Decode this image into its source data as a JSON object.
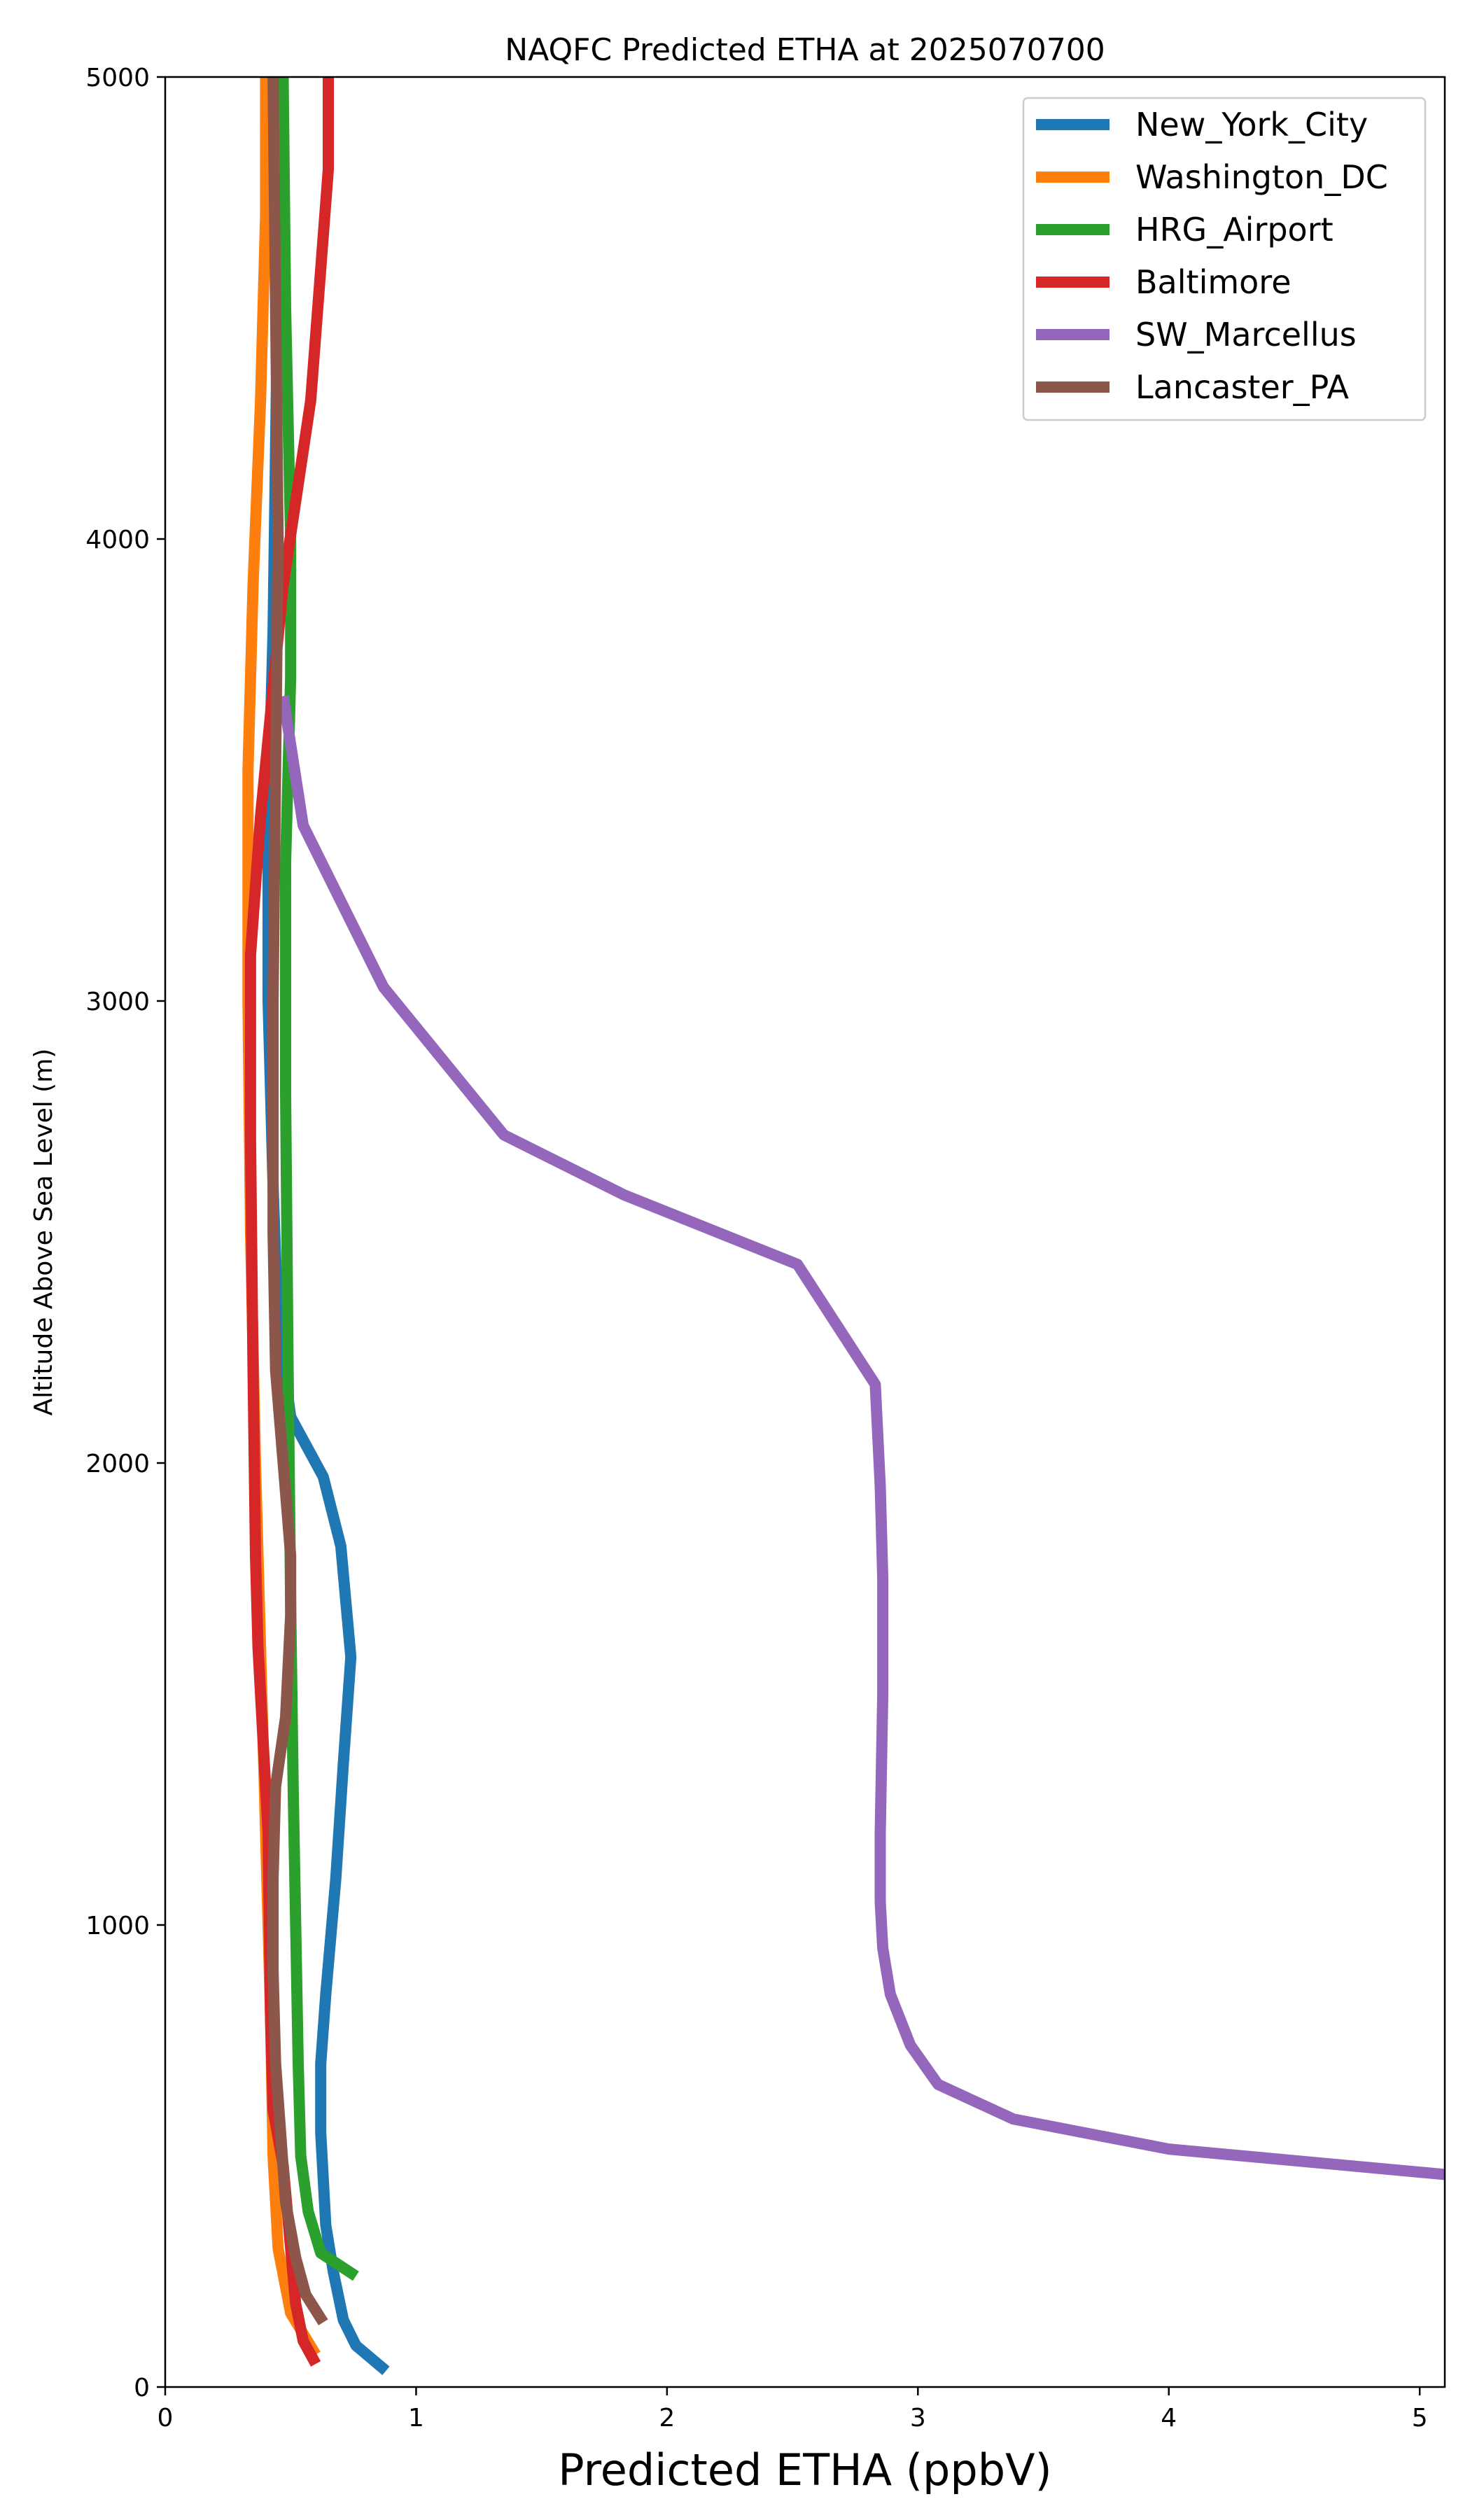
{
  "chart_data": {
    "type": "line",
    "title": "NAQFC Predicted ETHA at 2025070700",
    "xlabel": "Predicted ETHA (ppbV)",
    "ylabel": "Altitude Above Sea Level (m)",
    "xlim": [
      0,
      5.1
    ],
    "ylim": [
      0,
      5000
    ],
    "xticks": [
      0,
      1,
      2,
      3,
      4,
      5
    ],
    "yticks": [
      0,
      1000,
      2000,
      3000,
      4000,
      5000
    ],
    "legend": "top-right",
    "grid": false,
    "series": [
      {
        "name": "New_York_City",
        "color": "#1f77b4",
        "points": [
          [
            0.88,
            35
          ],
          [
            0.76,
            90
          ],
          [
            0.71,
            145
          ],
          [
            0.67,
            250
          ],
          [
            0.64,
            350
          ],
          [
            0.63,
            450
          ],
          [
            0.62,
            550
          ],
          [
            0.62,
            700
          ],
          [
            0.64,
            850
          ],
          [
            0.68,
            1100
          ],
          [
            0.71,
            1350
          ],
          [
            0.74,
            1580
          ],
          [
            0.7,
            1820
          ],
          [
            0.63,
            1970
          ],
          [
            0.5,
            2100
          ],
          [
            0.45,
            2300
          ],
          [
            0.43,
            2600
          ],
          [
            0.41,
            3000
          ],
          [
            0.41,
            3400
          ],
          [
            0.43,
            3800
          ],
          [
            0.44,
            4200
          ],
          [
            0.45,
            4600
          ],
          [
            0.46,
            5000
          ]
        ]
      },
      {
        "name": "Washington_DC",
        "color": "#ff7f0e",
        "points": [
          [
            0.6,
            70
          ],
          [
            0.5,
            160
          ],
          [
            0.45,
            300
          ],
          [
            0.43,
            500
          ],
          [
            0.42,
            800
          ],
          [
            0.4,
            1200
          ],
          [
            0.38,
            1600
          ],
          [
            0.36,
            2000
          ],
          [
            0.34,
            2500
          ],
          [
            0.33,
            3000
          ],
          [
            0.33,
            3500
          ],
          [
            0.35,
            3900
          ],
          [
            0.38,
            4300
          ],
          [
            0.4,
            4700
          ],
          [
            0.4,
            5000
          ]
        ]
      },
      {
        "name": "HRG_Airport",
        "color": "#2ca02c",
        "points": [
          [
            0.76,
            240
          ],
          [
            0.62,
            290
          ],
          [
            0.57,
            380
          ],
          [
            0.54,
            500
          ],
          [
            0.53,
            700
          ],
          [
            0.52,
            1000
          ],
          [
            0.51,
            1300
          ],
          [
            0.5,
            1700
          ],
          [
            0.49,
            2200
          ],
          [
            0.48,
            2800
          ],
          [
            0.48,
            3300
          ],
          [
            0.5,
            3700
          ],
          [
            0.5,
            4000
          ],
          [
            0.48,
            4500
          ],
          [
            0.47,
            5000
          ]
        ]
      },
      {
        "name": "Baltimore",
        "color": "#d62728",
        "points": [
          [
            0.6,
            50
          ],
          [
            0.55,
            100
          ],
          [
            0.52,
            180
          ],
          [
            0.5,
            300
          ],
          [
            0.47,
            480
          ],
          [
            0.43,
            600
          ],
          [
            0.42,
            800
          ],
          [
            0.41,
            1200
          ],
          [
            0.37,
            1600
          ],
          [
            0.36,
            1800
          ],
          [
            0.35,
            2200
          ],
          [
            0.34,
            2700
          ],
          [
            0.34,
            3100
          ],
          [
            0.38,
            3400
          ],
          [
            0.47,
            3900
          ],
          [
            0.58,
            4300
          ],
          [
            0.65,
            4800
          ],
          [
            0.65,
            5000
          ]
        ]
      },
      {
        "name": "SW_Marcellus",
        "color": "#9467bd",
        "points": [
          [
            5.1,
            460
          ],
          [
            4.0,
            515
          ],
          [
            3.38,
            580
          ],
          [
            3.08,
            655
          ],
          [
            2.97,
            740
          ],
          [
            2.89,
            850
          ],
          [
            2.86,
            950
          ],
          [
            2.85,
            1050
          ],
          [
            2.85,
            1200
          ],
          [
            2.86,
            1500
          ],
          [
            2.86,
            1750
          ],
          [
            2.85,
            1950
          ],
          [
            2.83,
            2170
          ],
          [
            2.52,
            2430
          ],
          [
            1.83,
            2580
          ],
          [
            1.35,
            2710
          ],
          [
            0.87,
            3030
          ],
          [
            0.55,
            3380
          ],
          [
            0.47,
            3660
          ]
        ]
      },
      {
        "name": "Lancaster_PA",
        "color": "#8c564b",
        "points": [
          [
            0.63,
            140
          ],
          [
            0.56,
            200
          ],
          [
            0.52,
            280
          ],
          [
            0.48,
            400
          ],
          [
            0.46,
            550
          ],
          [
            0.44,
            700
          ],
          [
            0.43,
            900
          ],
          [
            0.43,
            1100
          ],
          [
            0.44,
            1300
          ],
          [
            0.48,
            1450
          ],
          [
            0.5,
            1670
          ],
          [
            0.5,
            1800
          ],
          [
            0.47,
            2000
          ],
          [
            0.44,
            2200
          ],
          [
            0.43,
            2500
          ],
          [
            0.43,
            3000
          ],
          [
            0.44,
            3500
          ],
          [
            0.45,
            4000
          ],
          [
            0.44,
            4500
          ],
          [
            0.43,
            5000
          ]
        ]
      }
    ]
  }
}
